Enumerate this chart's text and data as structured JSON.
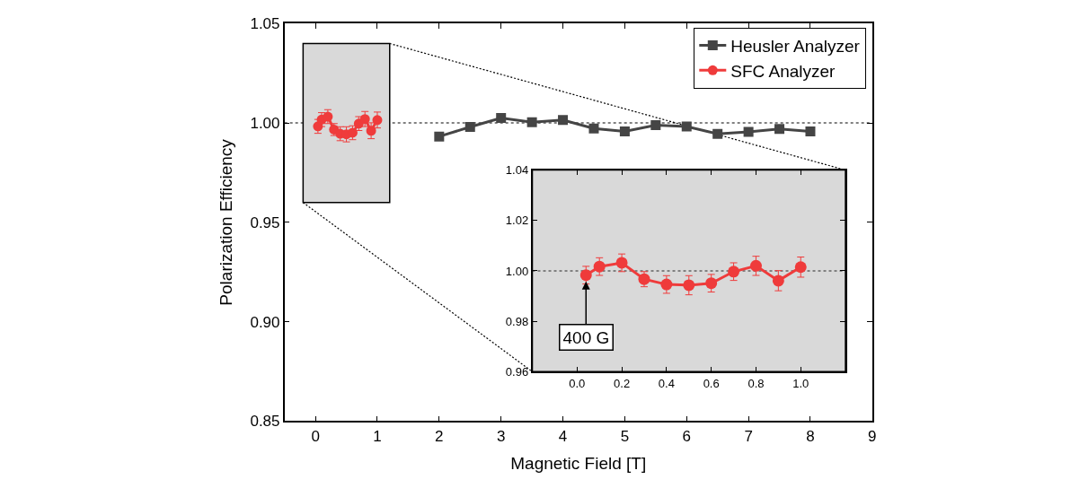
{
  "chart_data": [
    {
      "type": "line",
      "xlabel": "Magnetic Field [T]",
      "ylabel": "Polarization Efficiency",
      "xlim": [
        -0.5,
        9
      ],
      "xticks": [
        0,
        1,
        2,
        3,
        4,
        5,
        6,
        7,
        8,
        9
      ],
      "ylim": [
        0.85,
        1.05
      ],
      "yticks": [
        {
          "value": 0.85,
          "label": "0.85"
        },
        {
          "value": 0.9,
          "label": "0.90"
        },
        {
          "value": 0.95,
          "label": "0.95"
        },
        {
          "value": 1.0,
          "label": "1.00"
        },
        {
          "value": 1.05,
          "label": "1.05"
        }
      ],
      "grid": false,
      "legend": "top right",
      "series": [
        {
          "name": "Heusler Analyzer",
          "color": "#454545",
          "marker": "square",
          "x": [
            2.0,
            2.5,
            3.0,
            3.5,
            4.0,
            4.5,
            5.0,
            5.5,
            6.0,
            6.5,
            7.0,
            7.5,
            8.0
          ],
          "values": [
            0.9932,
            0.998,
            1.0025,
            1.0004,
            1.0015,
            0.9972,
            0.9958,
            0.9989,
            0.9982,
            0.9945,
            0.9955,
            0.997,
            0.9958
          ]
        },
        {
          "name": "SFC Analyzer",
          "color": "#ef3b3b",
          "marker": "circle",
          "x": [
            0.04,
            0.1,
            0.2,
            0.3,
            0.4,
            0.5,
            0.6,
            0.7,
            0.8,
            0.9,
            1.0
          ],
          "values": [
            0.9983,
            1.0017,
            1.0032,
            0.9967,
            0.9946,
            0.9943,
            0.9951,
            0.9997,
            1.002,
            0.9961,
            1.0015
          ],
          "errors": [
            0.0035,
            0.0035,
            0.0035,
            0.003,
            0.0035,
            0.0038,
            0.0035,
            0.0035,
            0.0038,
            0.004,
            0.004
          ]
        }
      ],
      "ref_lines": [
        {
          "axis": "y",
          "value": 1.0,
          "color": "#808080",
          "line_style": "dotted"
        }
      ]
    },
    {
      "type": "line",
      "xlim": [
        -0.2,
        1.2
      ],
      "xticks": [
        {
          "value": 0.0,
          "label": "0.0"
        },
        {
          "value": 0.2,
          "label": "0.2"
        },
        {
          "value": 0.4,
          "label": "0.4"
        },
        {
          "value": 0.6,
          "label": "0.6"
        },
        {
          "value": 0.8,
          "label": "0.8"
        },
        {
          "value": 1.0,
          "label": "1.0"
        }
      ],
      "ylim": [
        0.96,
        1.04
      ],
      "yticks": [
        {
          "value": 0.96,
          "label": "0.96"
        },
        {
          "value": 0.98,
          "label": "0.98"
        },
        {
          "value": 1.0,
          "label": "1.00"
        },
        {
          "value": 1.02,
          "label": "1.02"
        },
        {
          "value": 1.04,
          "label": "1.04"
        }
      ],
      "grid": false,
      "legend": false,
      "series": [
        {
          "color": "#ef3b3b",
          "marker": "circle",
          "x": [
            0.04,
            0.1,
            0.2,
            0.3,
            0.4,
            0.5,
            0.6,
            0.7,
            0.8,
            0.9,
            1.0
          ],
          "values": [
            0.9983,
            1.0017,
            1.0032,
            0.9967,
            0.9946,
            0.9943,
            0.9951,
            0.9997,
            1.002,
            0.9961,
            1.0015
          ],
          "errors": [
            0.0035,
            0.0035,
            0.0035,
            0.003,
            0.0035,
            0.0038,
            0.0035,
            0.0035,
            0.0038,
            0.004,
            0.004
          ]
        }
      ],
      "ref_lines": [
        {
          "axis": "y",
          "value": 1.0,
          "color": "#808080",
          "line_style": "dotted"
        }
      ],
      "annotations": [
        {
          "text": "400 G",
          "x": 0.04,
          "y": 0.9983
        }
      ]
    }
  ]
}
